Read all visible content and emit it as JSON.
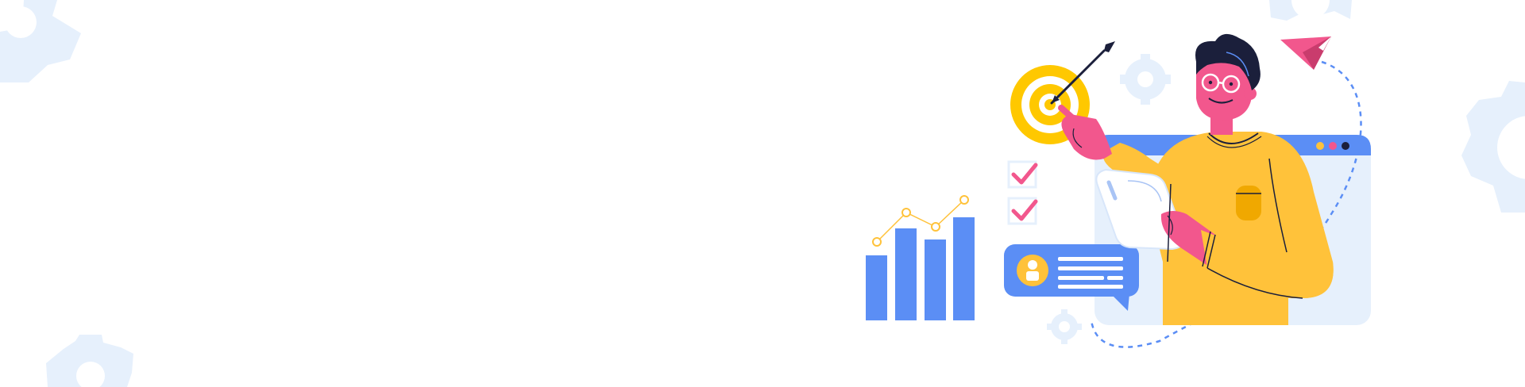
{
  "banner": {
    "colors": {
      "background": "#ffffff",
      "gear_pale": "#e6f0fc",
      "accent_blue": "#5b8ef5",
      "accent_yellow": "#ffc23a",
      "target_yellow": "#ffc800",
      "accent_pink": "#f2578d",
      "ink": "#1b1f3b"
    },
    "chart_mark_count": 4,
    "checkbox_count": 2,
    "icons": [
      "gear-icon",
      "target-icon",
      "arrow-icon",
      "paper-plane-icon",
      "check-icon",
      "user-icon",
      "browser-window-icon",
      "bar-chart-icon"
    ]
  }
}
